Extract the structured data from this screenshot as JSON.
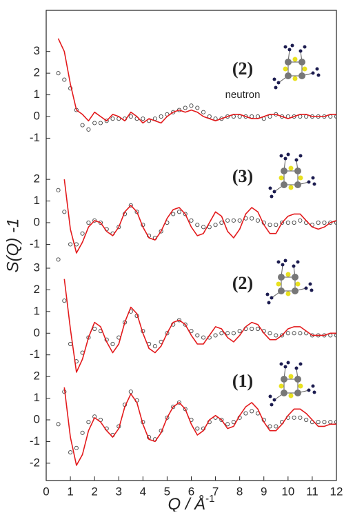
{
  "chart_data": [
    {
      "type": "line",
      "label": "(2)",
      "note": "neutron",
      "ylim": [
        -1.5,
        4.9
      ],
      "yticks": [
        -1,
        0,
        1,
        2,
        3
      ],
      "x": [
        0.5,
        0.75,
        1,
        1.25,
        1.5,
        1.75,
        2,
        2.25,
        2.5,
        2.75,
        3,
        3.25,
        3.5,
        3.75,
        4,
        4.25,
        4.5,
        4.75,
        5,
        5.25,
        5.5,
        5.75,
        6,
        6.25,
        6.5,
        6.75,
        7,
        7.25,
        7.5,
        7.75,
        8,
        8.25,
        8.5,
        8.75,
        9,
        9.25,
        9.5,
        9.75,
        10,
        10.25,
        10.5,
        10.75,
        11,
        11.25,
        11.5,
        11.75,
        12
      ],
      "series": [
        {
          "color": "#555555",
          "marker": "circle",
          "values": [
            2.0,
            1.7,
            1.3,
            0.3,
            -0.4,
            -0.6,
            -0.3,
            -0.3,
            -0.2,
            -0.1,
            -0.1,
            -0.1,
            0.0,
            -0.1,
            -0.1,
            -0.2,
            -0.1,
            0.0,
            0.1,
            0.2,
            0.3,
            0.4,
            0.5,
            0.4,
            0.2,
            0.0,
            -0.1,
            -0.1,
            0.0,
            0.0,
            0.0,
            0.0,
            0.0,
            0.0,
            -0.1,
            0.0,
            0.1,
            0.0,
            0.0,
            0.0,
            0.0,
            0.0,
            0.0,
            0.0,
            0.0,
            0.0,
            0.0
          ]
        },
        {
          "color": "#e31a1c",
          "marker": "line",
          "values": [
            3.6,
            3.0,
            1.5,
            0.3,
            0.1,
            -0.2,
            0.2,
            0.0,
            -0.2,
            0.1,
            0.0,
            -0.2,
            0.2,
            0.0,
            -0.3,
            -0.1,
            -0.2,
            -0.3,
            0.0,
            0.2,
            0.3,
            0.2,
            0.3,
            0.2,
            0.0,
            -0.1,
            -0.2,
            -0.1,
            0.0,
            0.1,
            0.1,
            0.0,
            -0.1,
            -0.1,
            0.0,
            0.1,
            0.1,
            0.0,
            -0.1,
            0.0,
            0.1,
            0.1,
            0.0,
            0.0,
            0.0,
            0.1,
            0.1
          ]
        }
      ]
    },
    {
      "type": "line",
      "label": "(3)",
      "ylim": [
        -1.8,
        3.4
      ],
      "yticks": [
        -1,
        0,
        1,
        2
      ],
      "x": [
        0.5,
        0.75,
        1,
        1.25,
        1.5,
        1.75,
        2,
        2.25,
        2.5,
        2.75,
        3,
        3.25,
        3.5,
        3.75,
        4,
        4.25,
        4.5,
        4.75,
        5,
        5.25,
        5.5,
        5.75,
        6,
        6.25,
        6.5,
        6.75,
        7,
        7.25,
        7.5,
        7.75,
        8,
        8.25,
        8.5,
        8.75,
        9,
        9.25,
        9.5,
        9.75,
        10,
        10.25,
        10.5,
        10.75,
        11,
        11.25,
        11.5,
        11.75,
        12
      ],
      "series": [
        {
          "color": "#555555",
          "marker": "circle",
          "values": [
            1.5,
            0.5,
            -1.0,
            -1.0,
            -0.5,
            0.0,
            0.1,
            0.0,
            -0.3,
            -0.5,
            -0.2,
            0.4,
            0.8,
            0.5,
            -0.1,
            -0.6,
            -0.7,
            -0.4,
            0.0,
            0.4,
            0.5,
            0.4,
            0.1,
            -0.1,
            -0.2,
            -0.2,
            -0.1,
            0.0,
            0.1,
            0.1,
            0.1,
            0.2,
            0.2,
            0.1,
            0.0,
            -0.1,
            -0.1,
            0.0,
            0.0,
            0.0,
            0.1,
            0.0,
            -0.1,
            0.0,
            0.0,
            0.0,
            0.0
          ]
        },
        {
          "color": "#e31a1c",
          "marker": "line",
          "values": [
            null,
            2.0,
            -0.3,
            -1.4,
            -0.9,
            -0.2,
            0.1,
            0.0,
            -0.4,
            -0.6,
            -0.2,
            0.5,
            0.8,
            0.5,
            -0.2,
            -0.7,
            -0.8,
            -0.4,
            0.2,
            0.6,
            0.7,
            0.4,
            -0.2,
            -0.6,
            -0.5,
            0.0,
            0.5,
            0.3,
            -0.4,
            -0.7,
            -0.3,
            0.4,
            0.7,
            0.5,
            -0.1,
            -0.5,
            -0.5,
            0.0,
            0.3,
            0.4,
            0.4,
            0.1,
            -0.2,
            -0.3,
            -0.2,
            0.0,
            0.1
          ]
        }
      ]
    },
    {
      "type": "line",
      "label": "(2)",
      "ylim": [
        -1.5,
        3.3
      ],
      "yticks": [
        -1,
        0,
        1,
        2,
        3
      ],
      "x": [
        0.5,
        0.75,
        1,
        1.25,
        1.5,
        1.75,
        2,
        2.25,
        2.5,
        2.75,
        3,
        3.25,
        3.5,
        3.75,
        4,
        4.25,
        4.5,
        4.75,
        5,
        5.25,
        5.5,
        5.75,
        6,
        6.25,
        6.5,
        6.75,
        7,
        7.25,
        7.5,
        7.75,
        8,
        8.25,
        8.5,
        8.75,
        9,
        9.25,
        9.5,
        9.75,
        10,
        10.25,
        10.5,
        10.75,
        11,
        11.25,
        11.5,
        11.75,
        12
      ],
      "series": [
        {
          "color": "#555555",
          "marker": "circle",
          "values": [
            3.4,
            1.5,
            -0.5,
            -1.3,
            -0.9,
            -0.2,
            0.2,
            0.1,
            -0.3,
            -0.5,
            -0.2,
            0.5,
            1.0,
            0.8,
            0.1,
            -0.5,
            -0.6,
            -0.4,
            0.0,
            0.4,
            0.6,
            0.4,
            0.1,
            -0.1,
            -0.2,
            -0.2,
            -0.1,
            0.0,
            0.0,
            0.0,
            0.1,
            0.2,
            0.2,
            0.2,
            0.1,
            0.0,
            -0.1,
            -0.1,
            0.0,
            0.0,
            0.0,
            0.0,
            -0.1,
            -0.1,
            -0.1,
            -0.1,
            -0.1
          ]
        },
        {
          "color": "#e31a1c",
          "marker": "line",
          "values": [
            null,
            2.5,
            0.2,
            -1.8,
            -1.2,
            -0.2,
            0.5,
            0.3,
            -0.4,
            -0.9,
            -0.5,
            0.5,
            1.2,
            0.9,
            0.0,
            -0.7,
            -0.9,
            -0.6,
            0.0,
            0.5,
            0.6,
            0.4,
            -0.1,
            -0.5,
            -0.5,
            -0.1,
            0.3,
            0.2,
            -0.2,
            -0.4,
            -0.1,
            0.3,
            0.5,
            0.4,
            0.0,
            -0.3,
            -0.3,
            -0.1,
            0.2,
            0.3,
            0.3,
            0.1,
            -0.1,
            -0.1,
            -0.1,
            0.0,
            0.0
          ]
        }
      ]
    },
    {
      "type": "line",
      "label": "(1)",
      "ylim": [
        -2.8,
        2.5
      ],
      "yticks": [
        -2,
        -1,
        0,
        1,
        2
      ],
      "xlim": [
        0,
        12
      ],
      "xticks": [
        0,
        1,
        2,
        3,
        4,
        5,
        6,
        7,
        8,
        9,
        10,
        11,
        12
      ],
      "xlabel": "Q / Å",
      "xlabel_exponent": "-1",
      "ylabel": "S(Q) -1",
      "x": [
        0.5,
        0.75,
        1,
        1.25,
        1.5,
        1.75,
        2,
        2.25,
        2.5,
        2.75,
        3,
        3.25,
        3.5,
        3.75,
        4,
        4.25,
        4.5,
        4.75,
        5,
        5.25,
        5.5,
        5.75,
        6,
        6.25,
        6.5,
        6.75,
        7,
        7.25,
        7.5,
        7.75,
        8,
        8.25,
        8.5,
        8.75,
        9,
        9.25,
        9.5,
        9.75,
        10,
        10.25,
        10.5,
        10.75,
        11,
        11.25,
        11.5,
        11.75,
        12
      ],
      "series": [
        {
          "color": "#555555",
          "marker": "circle",
          "values": [
            -0.2,
            1.3,
            -1.5,
            -1.3,
            -0.6,
            -0.1,
            0.15,
            0.0,
            -0.4,
            -0.7,
            -0.3,
            0.7,
            1.3,
            0.9,
            -0.1,
            -0.8,
            -0.9,
            -0.5,
            0.1,
            0.6,
            0.8,
            0.5,
            0.0,
            -0.4,
            -0.4,
            -0.1,
            0.1,
            0.0,
            -0.2,
            -0.1,
            0.1,
            0.3,
            0.4,
            0.3,
            0.0,
            -0.3,
            -0.3,
            -0.1,
            0.1,
            0.1,
            0.1,
            0.0,
            -0.1,
            -0.1,
            -0.1,
            -0.1,
            -0.1
          ]
        },
        {
          "color": "#e31a1c",
          "marker": "line",
          "values": [
            null,
            1.5,
            -0.8,
            -2.1,
            -1.6,
            -0.5,
            0.1,
            -0.1,
            -0.5,
            -0.8,
            -0.4,
            0.6,
            1.2,
            0.8,
            -0.2,
            -0.9,
            -1.0,
            -0.6,
            0.1,
            0.6,
            0.8,
            0.5,
            -0.2,
            -0.7,
            -0.5,
            0.0,
            0.2,
            0.0,
            -0.4,
            -0.3,
            0.2,
            0.6,
            0.8,
            0.5,
            -0.1,
            -0.5,
            -0.5,
            -0.2,
            0.2,
            0.5,
            0.5,
            0.3,
            0.0,
            -0.3,
            -0.3,
            -0.2,
            -0.2
          ]
        }
      ]
    }
  ]
}
